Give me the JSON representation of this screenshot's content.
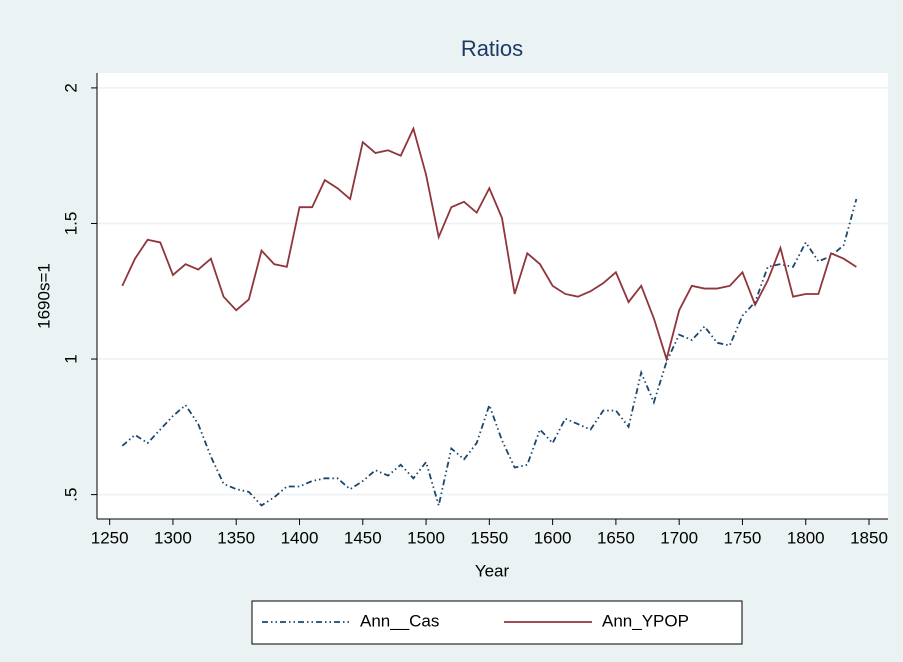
{
  "chart_data": {
    "type": "line",
    "title": "Ratios",
    "xlabel": "Year",
    "ylabel": "1690s=1",
    "x": [
      1260,
      1270,
      1280,
      1290,
      1300,
      1310,
      1320,
      1330,
      1340,
      1350,
      1360,
      1370,
      1380,
      1390,
      1400,
      1410,
      1420,
      1430,
      1440,
      1450,
      1460,
      1470,
      1480,
      1490,
      1500,
      1510,
      1520,
      1530,
      1540,
      1550,
      1560,
      1570,
      1580,
      1590,
      1600,
      1610,
      1620,
      1630,
      1640,
      1650,
      1660,
      1670,
      1680,
      1690,
      1700,
      1710,
      1720,
      1730,
      1740,
      1750,
      1760,
      1770,
      1780,
      1790,
      1800,
      1810,
      1820,
      1830,
      1840
    ],
    "series": [
      {
        "name": "Ann__Cas",
        "color": "#1a476f",
        "dash": "dash-dot",
        "values": [
          0.68,
          0.72,
          0.69,
          0.74,
          0.79,
          0.83,
          0.76,
          0.64,
          0.54,
          0.52,
          0.51,
          0.46,
          0.49,
          0.53,
          0.53,
          0.55,
          0.56,
          0.56,
          0.52,
          0.55,
          0.59,
          0.57,
          0.61,
          0.56,
          0.62,
          0.46,
          0.67,
          0.63,
          0.69,
          0.83,
          0.7,
          0.6,
          0.61,
          0.74,
          0.69,
          0.78,
          0.76,
          0.74,
          0.81,
          0.81,
          0.75,
          0.95,
          0.84,
          0.99,
          1.09,
          1.07,
          1.12,
          1.06,
          1.05,
          1.16,
          1.21,
          1.34,
          1.35,
          1.34,
          1.43,
          1.36,
          1.38,
          1.42,
          1.59
        ]
      },
      {
        "name": "Ann_YPOP",
        "color": "#90353b",
        "dash": "solid",
        "values": [
          1.27,
          1.37,
          1.44,
          1.43,
          1.31,
          1.35,
          1.33,
          1.37,
          1.23,
          1.18,
          1.22,
          1.4,
          1.35,
          1.34,
          1.56,
          1.56,
          1.66,
          1.63,
          1.59,
          1.8,
          1.76,
          1.77,
          1.75,
          1.85,
          1.68,
          1.45,
          1.56,
          1.58,
          1.54,
          1.63,
          1.52,
          1.24,
          1.39,
          1.35,
          1.27,
          1.24,
          1.23,
          1.25,
          1.28,
          1.32,
          1.21,
          1.27,
          1.15,
          1.0,
          1.18,
          1.27,
          1.26,
          1.26,
          1.27,
          1.32,
          1.2,
          1.29,
          1.41,
          1.23,
          1.24,
          1.24,
          1.39,
          1.37,
          1.34
        ]
      }
    ],
    "xlim": [
      1240,
      1865
    ],
    "xticks": [
      1250,
      1300,
      1350,
      1400,
      1450,
      1500,
      1550,
      1600,
      1650,
      1700,
      1750,
      1800,
      1850
    ],
    "ylim": [
      0.41,
      2.055
    ],
    "yticks": [
      {
        "value": 0.5,
        "label": ".5"
      },
      1,
      1.5,
      2
    ],
    "grid": true,
    "legend": "bottom"
  }
}
